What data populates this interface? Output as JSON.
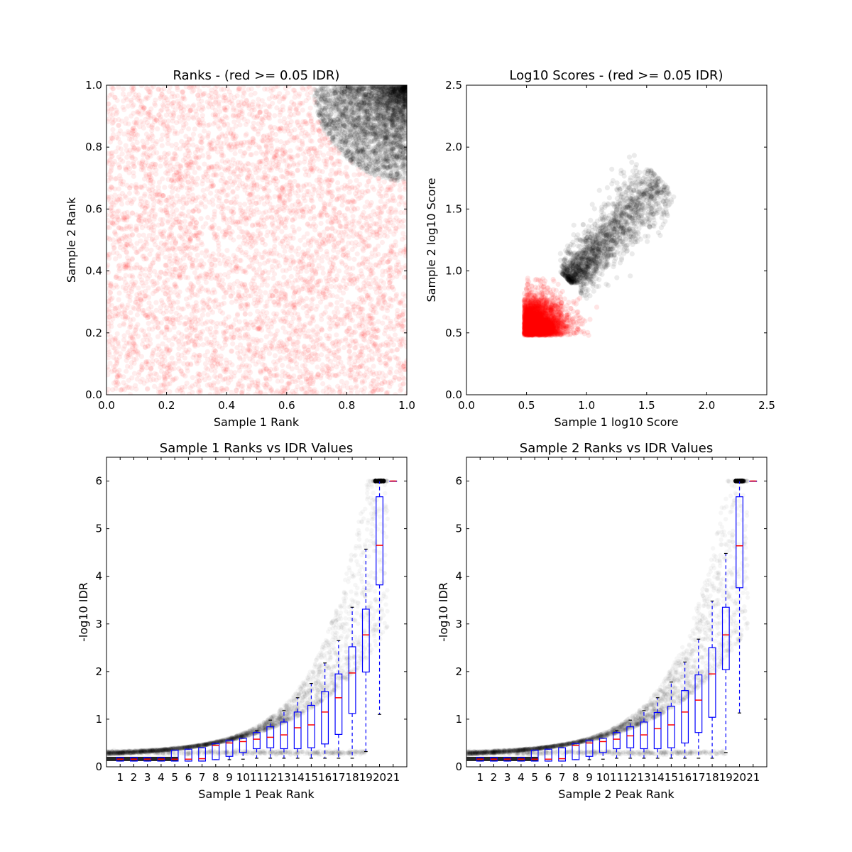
{
  "chart_data": [
    {
      "type": "scatter",
      "title": "Ranks - (red >= 0.05 IDR)",
      "xlabel": "Sample 1 Rank",
      "ylabel": "Sample 2 Rank",
      "xlim": [
        0,
        1.0
      ],
      "ylim": [
        0,
        1.0
      ],
      "xticks": [
        "0.0",
        "0.2",
        "0.4",
        "0.6",
        "0.8",
        "1.0"
      ],
      "yticks": [
        "0.0",
        "0.2",
        "0.4",
        "0.6",
        "0.8",
        "1.0"
      ],
      "series": [
        {
          "color": "#ff0000",
          "alpha": 0.07,
          "description_region": "uniform over the unit square outside the top-right arc",
          "arc_center": [
            1.0,
            1.0
          ],
          "arc_radius": 0.31
        },
        {
          "color": "#000000",
          "alpha": 0.08,
          "description_region": "inside the top-right arc, densest at (1,1)"
        }
      ]
    },
    {
      "type": "scatter",
      "title": "Log10 Scores - (red >= 0.05 IDR)",
      "xlabel": "Sample 1 log10 Score",
      "ylabel": "Sample 2 log10 Score",
      "xlim": [
        0,
        2.5
      ],
      "ylim": [
        0,
        2.5
      ],
      "xticks": [
        "0.0",
        "0.5",
        "1.0",
        "1.5",
        "2.0",
        "2.5"
      ],
      "yticks": [
        "0.0",
        "0.5",
        "1.0",
        "1.5",
        "2.0",
        "2.5"
      ],
      "series": [
        {
          "color": "#ff0000",
          "alpha": 0.1,
          "x_range": [
            0.48,
            1.25
          ],
          "y_range": [
            0.48,
            1.05
          ],
          "threshold": 0.5
        },
        {
          "color": "#000000",
          "alpha": 0.08,
          "x_range": [
            0.8,
            1.95
          ],
          "y_range": [
            0.7,
            2.0
          ]
        }
      ]
    },
    {
      "type": "box",
      "title": "Sample 1 Ranks vs IDR Values",
      "xlabel": "Sample 1 Peak Rank",
      "ylabel": "-log10 IDR",
      "ylim": [
        0,
        6.5
      ],
      "yticks": [
        "0",
        "1",
        "2",
        "3",
        "4",
        "5",
        "6"
      ],
      "categories": [
        "1",
        "2",
        "3",
        "4",
        "5",
        "6",
        "7",
        "8",
        "9",
        "10",
        "11",
        "12",
        "13",
        "14",
        "15",
        "16",
        "17",
        "18",
        "19",
        "20",
        "21"
      ],
      "boxes": [
        {
          "q1": 0.12,
          "median": 0.16,
          "q3": 0.2,
          "wlow": 0.12,
          "whigh": 0.2
        },
        {
          "q1": 0.12,
          "median": 0.16,
          "q3": 0.2,
          "wlow": 0.12,
          "whigh": 0.2
        },
        {
          "q1": 0.12,
          "median": 0.16,
          "q3": 0.2,
          "wlow": 0.12,
          "whigh": 0.2
        },
        {
          "q1": 0.12,
          "median": 0.16,
          "q3": 0.2,
          "wlow": 0.12,
          "whigh": 0.2
        },
        {
          "q1": 0.12,
          "median": 0.16,
          "q3": 0.35,
          "wlow": 0.12,
          "whigh": 0.35
        },
        {
          "q1": 0.12,
          "median": 0.16,
          "q3": 0.37,
          "wlow": 0.12,
          "whigh": 0.37
        },
        {
          "q1": 0.12,
          "median": 0.17,
          "q3": 0.4,
          "wlow": 0.12,
          "whigh": 0.4
        },
        {
          "q1": 0.15,
          "median": 0.45,
          "q3": 0.49,
          "wlow": 0.15,
          "whigh": 0.49
        },
        {
          "q1": 0.22,
          "median": 0.5,
          "q3": 0.56,
          "wlow": 0.15,
          "whigh": 0.56
        },
        {
          "q1": 0.3,
          "median": 0.53,
          "q3": 0.6,
          "wlow": 0.16,
          "whigh": 0.6
        },
        {
          "q1": 0.38,
          "median": 0.58,
          "q3": 0.72,
          "wlow": 0.18,
          "whigh": 0.76
        },
        {
          "q1": 0.4,
          "median": 0.62,
          "q3": 0.84,
          "wlow": 0.18,
          "whigh": 0.98
        },
        {
          "q1": 0.38,
          "median": 0.67,
          "q3": 0.94,
          "wlow": 0.18,
          "whigh": 1.18
        },
        {
          "q1": 0.38,
          "median": 0.82,
          "q3": 1.15,
          "wlow": 0.18,
          "whigh": 1.45
        },
        {
          "q1": 0.4,
          "median": 0.88,
          "q3": 1.29,
          "wlow": 0.18,
          "whigh": 1.75
        },
        {
          "q1": 0.48,
          "median": 1.15,
          "q3": 1.58,
          "wlow": 0.18,
          "whigh": 2.18
        },
        {
          "q1": 0.68,
          "median": 1.45,
          "q3": 1.95,
          "wlow": 0.18,
          "whigh": 2.65
        },
        {
          "q1": 1.12,
          "median": 1.97,
          "q3": 2.52,
          "wlow": 0.18,
          "whigh": 3.35
        },
        {
          "q1": 1.99,
          "median": 2.77,
          "q3": 3.31,
          "wlow": 0.32,
          "whigh": 4.57
        },
        {
          "q1": 3.82,
          "median": 4.65,
          "q3": 5.67,
          "wlow": 1.1,
          "whigh": 6.0
        },
        {
          "q1": 6.0,
          "median": 6.0,
          "q3": 6.0,
          "wlow": 6.0,
          "whigh": 6.0
        }
      ]
    },
    {
      "type": "box",
      "title": "Sample 2 Ranks vs IDR Values",
      "xlabel": "Sample 2 Peak Rank",
      "ylabel": "-log10 IDR",
      "ylim": [
        0,
        6.5
      ],
      "yticks": [
        "0",
        "1",
        "2",
        "3",
        "4",
        "5",
        "6"
      ],
      "categories": [
        "1",
        "2",
        "3",
        "4",
        "5",
        "6",
        "7",
        "8",
        "9",
        "10",
        "11",
        "12",
        "13",
        "14",
        "15",
        "16",
        "17",
        "18",
        "19",
        "20",
        "21"
      ],
      "boxes": [
        {
          "q1": 0.12,
          "median": 0.16,
          "q3": 0.2,
          "wlow": 0.12,
          "whigh": 0.2
        },
        {
          "q1": 0.12,
          "median": 0.16,
          "q3": 0.2,
          "wlow": 0.12,
          "whigh": 0.2
        },
        {
          "q1": 0.12,
          "median": 0.16,
          "q3": 0.2,
          "wlow": 0.12,
          "whigh": 0.2
        },
        {
          "q1": 0.12,
          "median": 0.16,
          "q3": 0.2,
          "wlow": 0.12,
          "whigh": 0.2
        },
        {
          "q1": 0.12,
          "median": 0.16,
          "q3": 0.35,
          "wlow": 0.12,
          "whigh": 0.35
        },
        {
          "q1": 0.12,
          "median": 0.16,
          "q3": 0.37,
          "wlow": 0.12,
          "whigh": 0.37
        },
        {
          "q1": 0.12,
          "median": 0.17,
          "q3": 0.4,
          "wlow": 0.12,
          "whigh": 0.4
        },
        {
          "q1": 0.15,
          "median": 0.45,
          "q3": 0.49,
          "wlow": 0.15,
          "whigh": 0.49
        },
        {
          "q1": 0.22,
          "median": 0.5,
          "q3": 0.56,
          "wlow": 0.15,
          "whigh": 0.56
        },
        {
          "q1": 0.3,
          "median": 0.53,
          "q3": 0.6,
          "wlow": 0.16,
          "whigh": 0.6
        },
        {
          "q1": 0.38,
          "median": 0.58,
          "q3": 0.72,
          "wlow": 0.18,
          "whigh": 0.76
        },
        {
          "q1": 0.4,
          "median": 0.65,
          "q3": 0.84,
          "wlow": 0.18,
          "whigh": 0.98
        },
        {
          "q1": 0.38,
          "median": 0.67,
          "q3": 0.94,
          "wlow": 0.18,
          "whigh": 1.18
        },
        {
          "q1": 0.38,
          "median": 0.8,
          "q3": 1.14,
          "wlow": 0.18,
          "whigh": 1.45
        },
        {
          "q1": 0.4,
          "median": 0.88,
          "q3": 1.27,
          "wlow": 0.18,
          "whigh": 1.78
        },
        {
          "q1": 0.5,
          "median": 1.15,
          "q3": 1.6,
          "wlow": 0.18,
          "whigh": 2.2
        },
        {
          "q1": 0.72,
          "median": 1.4,
          "q3": 1.93,
          "wlow": 0.18,
          "whigh": 2.68
        },
        {
          "q1": 1.04,
          "median": 1.95,
          "q3": 2.5,
          "wlow": 0.18,
          "whigh": 3.48
        },
        {
          "q1": 2.04,
          "median": 2.77,
          "q3": 3.35,
          "wlow": 0.3,
          "whigh": 4.48
        },
        {
          "q1": 3.76,
          "median": 4.64,
          "q3": 5.67,
          "wlow": 1.13,
          "whigh": 6.0
        },
        {
          "q1": 6.0,
          "median": 6.0,
          "q3": 6.0,
          "wlow": 6.0,
          "whigh": 6.0
        }
      ]
    }
  ],
  "colors": {
    "red": "#ff0000",
    "black": "#000000",
    "box": "#0000ff",
    "median": "#ff0000"
  }
}
